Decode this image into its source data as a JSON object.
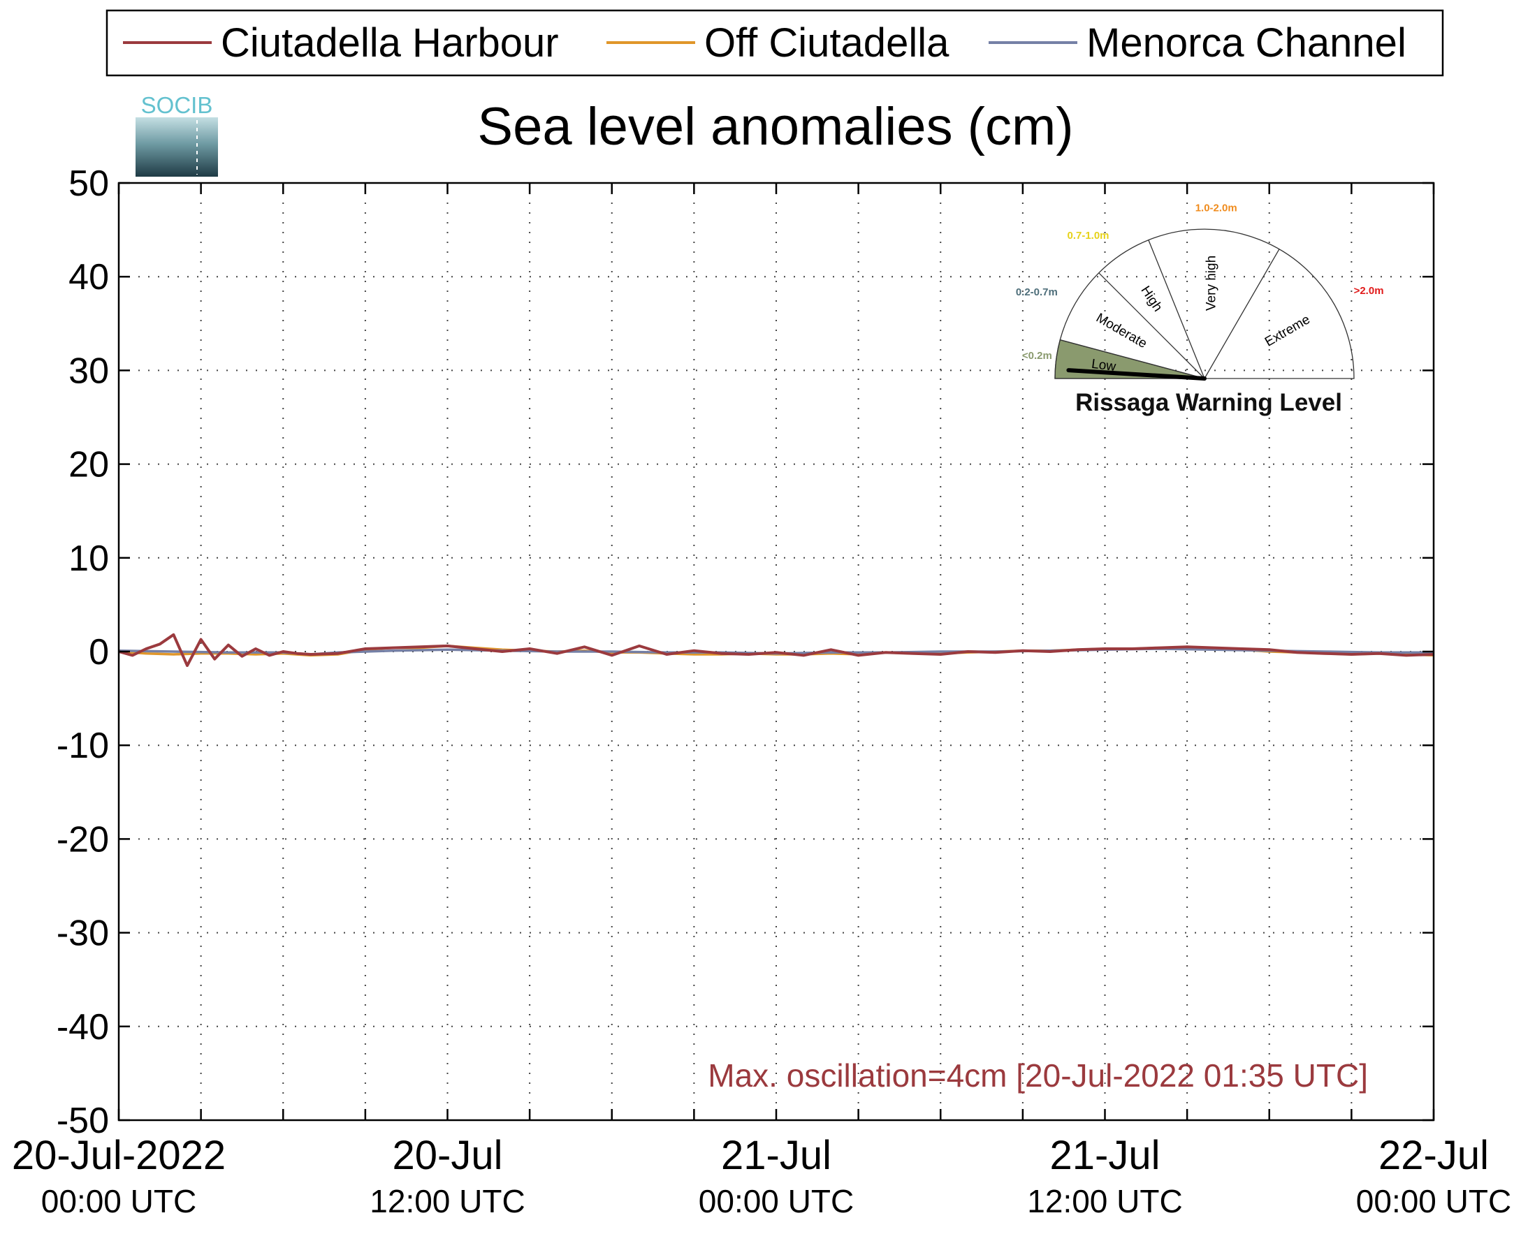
{
  "colors": {
    "ciutadella_harbour": "#9b3a3e",
    "off_ciutadella": "#e0962a",
    "menorca_channel": "#7580a6",
    "logo_text": "#63c1cf",
    "low_fill": "#8a9a6e",
    "annotation": "#9b3a3e"
  },
  "logo": {
    "text": "SOCIB"
  },
  "chart_data": {
    "type": "line",
    "title": "Sea level anomalies (cm)",
    "xlabel": "",
    "ylabel": "",
    "ylim": [
      -50,
      50
    ],
    "yticks": [
      50,
      40,
      30,
      20,
      10,
      0,
      -10,
      -20,
      -30,
      -40,
      -50
    ],
    "ytick_labels": [
      "50",
      "40",
      "30",
      "20",
      "10",
      "0",
      "-10",
      "-20",
      "-30",
      "-40",
      "-50"
    ],
    "xlim_hours": [
      0,
      48
    ],
    "xticks": [
      {
        "top": "20-Jul-2022",
        "bottom": "00:00 UTC"
      },
      {
        "top": "20-Jul",
        "bottom": "12:00 UTC"
      },
      {
        "top": "21-Jul",
        "bottom": "00:00 UTC"
      },
      {
        "top": "21-Jul",
        "bottom": "12:00 UTC"
      },
      {
        "top": "22-Jul",
        "bottom": "00:00 UTC"
      }
    ],
    "grid": true,
    "legend_position": "top",
    "series": [
      {
        "name": "Ciutadella Harbour",
        "color": "#9b3a3e",
        "x": [
          0,
          0.5,
          1,
          1.5,
          2,
          2.5,
          3,
          3.5,
          4,
          4.5,
          5,
          5.5,
          6,
          6.5,
          7,
          8,
          9,
          10,
          11,
          12,
          13,
          14,
          15,
          16,
          17,
          18,
          19,
          20,
          21,
          22,
          23,
          24,
          25,
          26,
          27,
          28,
          29,
          30,
          31,
          32,
          33,
          34,
          35,
          36,
          37,
          38,
          39,
          40,
          41,
          42,
          43,
          44,
          45,
          46,
          47,
          48
        ],
        "y": [
          0.0,
          -0.4,
          0.3,
          0.8,
          1.8,
          -1.5,
          1.3,
          -0.8,
          0.7,
          -0.5,
          0.3,
          -0.4,
          0.0,
          -0.2,
          -0.3,
          -0.2,
          0.3,
          0.4,
          0.5,
          0.6,
          0.3,
          0.0,
          0.3,
          -0.2,
          0.5,
          -0.4,
          0.6,
          -0.3,
          0.1,
          -0.2,
          -0.3,
          -0.1,
          -0.4,
          0.2,
          -0.4,
          -0.1,
          -0.2,
          -0.3,
          0.0,
          -0.1,
          0.1,
          0.0,
          0.2,
          0.3,
          0.3,
          0.4,
          0.5,
          0.4,
          0.3,
          0.2,
          -0.1,
          -0.2,
          -0.3,
          -0.2,
          -0.4,
          -0.3
        ]
      },
      {
        "name": "Off Ciutadella",
        "color": "#e0962a",
        "x": [
          0,
          1,
          2,
          3,
          4,
          5,
          6,
          7,
          8,
          9,
          10,
          11,
          12,
          13,
          14,
          15,
          16,
          17,
          18,
          19,
          20,
          21,
          22,
          23,
          24,
          25,
          26,
          27,
          28,
          29,
          30,
          31,
          32,
          33,
          34,
          35,
          36,
          37,
          38,
          39,
          40,
          41,
          42,
          43,
          44,
          45,
          46,
          47,
          48
        ],
        "y": [
          0.0,
          -0.2,
          -0.3,
          -0.2,
          -0.2,
          -0.3,
          -0.2,
          -0.4,
          -0.3,
          0.2,
          0.4,
          0.4,
          0.6,
          0.4,
          0.2,
          0.1,
          0.0,
          0.1,
          -0.1,
          -0.1,
          -0.2,
          -0.3,
          -0.3,
          -0.2,
          -0.3,
          -0.3,
          -0.2,
          -0.3,
          -0.1,
          -0.2,
          -0.2,
          -0.1,
          0.0,
          0.1,
          0.1,
          0.2,
          0.3,
          0.3,
          0.4,
          0.3,
          0.3,
          0.2,
          0.0,
          -0.1,
          -0.2,
          -0.3,
          -0.2,
          -0.3,
          -0.4
        ]
      },
      {
        "name": "Menorca Channel",
        "color": "#7580a6",
        "x": [
          0,
          2,
          4,
          6,
          7,
          8,
          10,
          12,
          14,
          16,
          18,
          20,
          22,
          24,
          26,
          28,
          30,
          32,
          34,
          36,
          38,
          40,
          42,
          44,
          46,
          48
        ],
        "y": [
          0.1,
          0.0,
          -0.1,
          -0.1,
          -0.3,
          -0.1,
          0.1,
          0.2,
          0.1,
          0.0,
          0.0,
          -0.1,
          -0.1,
          -0.2,
          -0.1,
          -0.1,
          0.0,
          0.0,
          0.1,
          0.2,
          0.3,
          0.2,
          0.1,
          0.0,
          -0.1,
          -0.1
        ]
      }
    ],
    "annotation": "Max. oscillation=4cm [20-Jul-2022 01:35 UTC]"
  },
  "gauge": {
    "title": "Rissaga Warning Level",
    "current_level": "Low",
    "levels": [
      {
        "name": "Low",
        "range": "<0.2m",
        "range_color": "#8a9a6e"
      },
      {
        "name": "Moderate",
        "range": "0.2-0.7m",
        "range_color": "#4e6e7a"
      },
      {
        "name": "High",
        "range": "0.7-1.0m",
        "range_color": "#e6d21a"
      },
      {
        "name": "Very high",
        "range": "1.0-2.0m",
        "range_color": "#f08c1e"
      },
      {
        "name": "Extreme",
        "range": ">2.0m",
        "range_color": "#e11b1b"
      }
    ]
  }
}
